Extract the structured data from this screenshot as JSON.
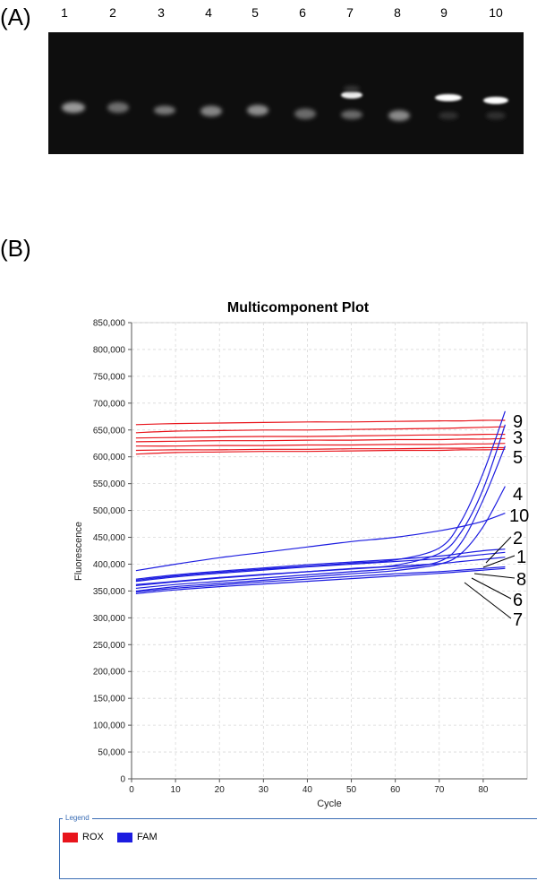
{
  "panel_a_label": "(A)",
  "panel_b_label": "(B)",
  "gel": {
    "lanes": [
      "1",
      "2",
      "3",
      "4",
      "5",
      "6",
      "7",
      "8",
      "9",
      "10"
    ]
  },
  "chart_data": {
    "type": "line",
    "title": "Multicomponent Plot",
    "xlabel": "Cycle",
    "ylabel": "Fluorescence",
    "xlim": [
      0,
      90
    ],
    "ylim": [
      0,
      850000
    ],
    "xticks": [
      0,
      10,
      20,
      30,
      40,
      50,
      60,
      70,
      80
    ],
    "yticks": [
      0,
      50000,
      100000,
      150000,
      200000,
      250000,
      300000,
      350000,
      400000,
      450000,
      500000,
      550000,
      600000,
      650000,
      700000,
      750000,
      800000,
      850000
    ],
    "ytick_labels": [
      "0",
      "50,000",
      "100,000",
      "150,000",
      "200,000",
      "250,000",
      "300,000",
      "350,000",
      "400,000",
      "450,000",
      "500,000",
      "550,000",
      "600,000",
      "650,000",
      "700,000",
      "750,000",
      "800,000",
      "850,000"
    ],
    "grid": true,
    "x": [
      1,
      10,
      20,
      30,
      40,
      50,
      60,
      70,
      75,
      80,
      85
    ],
    "series": [
      {
        "name": "ROX",
        "color": "#e8141b",
        "values": [
          660000,
          662000,
          663000,
          664000,
          665000,
          665000,
          666000,
          667000,
          667000,
          668000,
          668000
        ]
      },
      {
        "name": "ROX",
        "color": "#e8141b",
        "values": [
          645000,
          648000,
          649000,
          650000,
          650000,
          651000,
          652000,
          653000,
          654000,
          655000,
          656000
        ]
      },
      {
        "name": "ROX",
        "color": "#e8141b",
        "values": [
          635000,
          636000,
          637000,
          638000,
          638000,
          639000,
          640000,
          641000,
          641000,
          642000,
          642000
        ]
      },
      {
        "name": "ROX",
        "color": "#e8141b",
        "values": [
          628000,
          629000,
          630000,
          630000,
          631000,
          631000,
          632000,
          632000,
          633000,
          633000,
          634000
        ]
      },
      {
        "name": "ROX",
        "color": "#e8141b",
        "values": [
          620000,
          620000,
          621000,
          621000,
          622000,
          622000,
          623000,
          623000,
          624000,
          624000,
          625000
        ]
      },
      {
        "name": "ROX",
        "color": "#e8141b",
        "values": [
          612000,
          613000,
          613000,
          614000,
          614000,
          615000,
          615000,
          616000,
          616000,
          617000,
          617000
        ]
      },
      {
        "name": "ROX",
        "color": "#e8141b",
        "values": [
          605000,
          608000,
          609000,
          610000,
          610000,
          611000,
          612000,
          612000,
          613000,
          613000,
          614000
        ]
      },
      {
        "name": "FAM",
        "color": "#1c1ce0",
        "values": [
          370000,
          378000,
          385000,
          391000,
          396000,
          402000,
          408000,
          430000,
          480000,
          570000,
          685000
        ]
      },
      {
        "name": "FAM",
        "color": "#1c1ce0",
        "values": [
          362000,
          368000,
          375000,
          381000,
          386000,
          392000,
          398000,
          420000,
          460000,
          540000,
          660000
        ]
      },
      {
        "name": "FAM",
        "color": "#1c1ce0",
        "values": [
          372000,
          380000,
          387000,
          393000,
          399000,
          404000,
          409000,
          415000,
          420000,
          425000,
          428000
        ]
      },
      {
        "name": "FAM",
        "color": "#1c1ce0",
        "values": [
          355000,
          362000,
          368000,
          374000,
          380000,
          386000,
          392000,
          405000,
          440000,
          520000,
          620000
        ]
      },
      {
        "name": "FAM",
        "color": "#1c1ce0",
        "values": [
          350000,
          358000,
          364000,
          370000,
          376000,
          382000,
          388000,
          400000,
          420000,
          470000,
          545000
        ]
      },
      {
        "name": "FAM",
        "color": "#1c1ce0",
        "values": [
          388000,
          400000,
          412000,
          422000,
          432000,
          442000,
          450000,
          462000,
          470000,
          480000,
          495000
        ]
      },
      {
        "name": "FAM",
        "color": "#1c1ce0",
        "values": [
          368000,
          376000,
          383000,
          389000,
          395000,
          400000,
          405000,
          410000,
          414000,
          418000,
          422000
        ]
      },
      {
        "name": "FAM",
        "color": "#1c1ce0",
        "values": [
          360000,
          367000,
          374000,
          380000,
          386000,
          391000,
          396000,
          401000,
          405000,
          409000,
          413000
        ]
      },
      {
        "name": "FAM",
        "color": "#1c1ce0",
        "values": [
          348000,
          355000,
          361000,
          367000,
          372000,
          377000,
          382000,
          386000,
          389000,
          392000,
          395000
        ]
      },
      {
        "name": "FAM",
        "color": "#1c1ce0",
        "values": [
          345000,
          352000,
          358000,
          363000,
          368000,
          373000,
          378000,
          383000,
          386000,
          389000,
          392000
        ]
      }
    ],
    "annotations": [
      "9",
      "3",
      "5",
      "4",
      "10",
      "2",
      "1",
      "8",
      "6",
      "7"
    ],
    "legend_title": "Legend",
    "legend": [
      {
        "name": "ROX",
        "color": "#e8141b"
      },
      {
        "name": "FAM",
        "color": "#1c1ce0"
      }
    ],
    "legend_position": "bottom"
  }
}
